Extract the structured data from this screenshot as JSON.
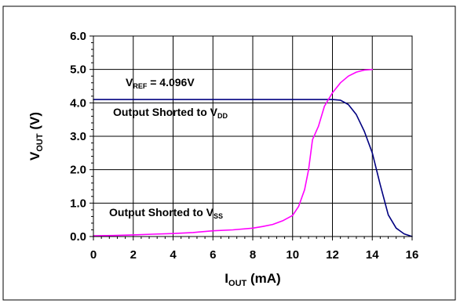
{
  "chart_data": {
    "type": "line",
    "xlabel": {
      "main": "I",
      "sub": "OUT",
      "rest": " (mA)"
    },
    "ylabel": {
      "main": "V",
      "sub": "OUT",
      "rest": " (V)"
    },
    "xlim": [
      0,
      16
    ],
    "ylim": [
      0.0,
      6.0
    ],
    "x_ticks": [
      "0",
      "2",
      "4",
      "6",
      "8",
      "10",
      "12",
      "14",
      "16"
    ],
    "y_ticks": [
      "0.0",
      "1.0",
      "2.0",
      "3.0",
      "4.0",
      "5.0",
      "6.0"
    ],
    "grid": true,
    "annotations": {
      "vref": {
        "main": "V",
        "sub": "REF",
        "rest": " = 4.096V"
      },
      "vdd": {
        "main": "Output Shorted to V",
        "sub": "DD"
      },
      "vss": {
        "main": "Output Shorted to V",
        "sub": "SS"
      }
    },
    "series": [
      {
        "color": "#000080",
        "x": [
          0,
          2,
          4,
          6,
          8,
          10,
          11,
          11.6,
          12,
          12.4,
          12.8,
          13.2,
          13.6,
          14.0,
          14.4,
          14.8,
          15.2,
          15.6,
          16.0
        ],
        "y": [
          4.1,
          4.1,
          4.1,
          4.1,
          4.1,
          4.1,
          4.1,
          4.1,
          4.1,
          4.08,
          3.95,
          3.65,
          3.15,
          2.5,
          1.55,
          0.65,
          0.25,
          0.08,
          0.0
        ]
      },
      {
        "color": "#FF00FF",
        "x": [
          0,
          1,
          2,
          3,
          4,
          5,
          6,
          7,
          8,
          8.5,
          9,
          9.5,
          10,
          10.3,
          10.6,
          10.8,
          11.0,
          11.3,
          11.6,
          12.0,
          12.4,
          12.8,
          13.2,
          13.6,
          14.0
        ],
        "y": [
          0.02,
          0.03,
          0.05,
          0.07,
          0.09,
          0.12,
          0.17,
          0.2,
          0.25,
          0.3,
          0.36,
          0.47,
          0.63,
          0.9,
          1.4,
          2.0,
          2.9,
          3.3,
          3.9,
          4.3,
          4.6,
          4.8,
          4.92,
          4.98,
          5.0
        ]
      }
    ]
  },
  "colors": {
    "frame": "#000000",
    "grid": "#000000",
    "background": "#ffffff"
  }
}
